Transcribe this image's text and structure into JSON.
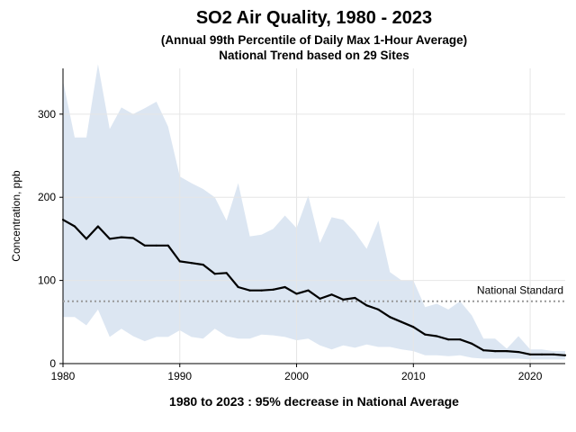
{
  "header": {
    "title": "SO2 Air Quality, 1980 - 2023",
    "subtitle_line1": "(Annual 99th Percentile of Daily Max 1-Hour Average)",
    "subtitle_line2": "National Trend based on 29 Sites"
  },
  "footer": {
    "summary": "1980 to 2023 :  95% decrease in National Average"
  },
  "chart_data": {
    "type": "area",
    "title": "SO2 Air Quality, 1980 - 2023",
    "xlabel": "",
    "ylabel": "Concentration, ppb",
    "xlim": [
      1980,
      2023
    ],
    "ylim": [
      0,
      355
    ],
    "xticks": [
      1980,
      1990,
      2000,
      2010,
      2020
    ],
    "yticks": [
      0,
      100,
      200,
      300
    ],
    "grid": true,
    "colors": {
      "band": "#dce6f2",
      "line": "#000000",
      "standard": "#999999",
      "grid": "#e6e6e6"
    },
    "reference_lines": [
      {
        "label": "National Standard",
        "value": 75
      }
    ],
    "x": [
      1980,
      1981,
      1982,
      1983,
      1984,
      1985,
      1986,
      1987,
      1988,
      1989,
      1990,
      1991,
      1992,
      1993,
      1994,
      1995,
      1996,
      1997,
      1998,
      1999,
      2000,
      2001,
      2002,
      2003,
      2004,
      2005,
      2006,
      2007,
      2008,
      2009,
      2010,
      2011,
      2012,
      2013,
      2014,
      2015,
      2016,
      2017,
      2018,
      2019,
      2020,
      2021,
      2022,
      2023
    ],
    "series": [
      {
        "type": "band",
        "upper": [
          340,
          272,
          272,
          360,
          282,
          308,
          300,
          307,
          315,
          285,
          225,
          217,
          210,
          200,
          172,
          217,
          153,
          155,
          162,
          178,
          163,
          202,
          145,
          176,
          173,
          158,
          138,
          172,
          110,
          100,
          100,
          68,
          72,
          65,
          75,
          58,
          30,
          30,
          18,
          33,
          17,
          17,
          15,
          15
        ],
        "lower": [
          56,
          56,
          46,
          65,
          32,
          42,
          33,
          27,
          32,
          32,
          40,
          32,
          30,
          42,
          33,
          30,
          30,
          35,
          34,
          32,
          28,
          30,
          22,
          17,
          22,
          19,
          23,
          20,
          20,
          17,
          15,
          10,
          10,
          9,
          10,
          7,
          6,
          6,
          6,
          6,
          5,
          5,
          5,
          5
        ]
      },
      {
        "type": "line",
        "values": [
          173,
          165,
          150,
          165,
          150,
          152,
          151,
          142,
          142,
          142,
          123,
          121,
          119,
          108,
          109,
          92,
          88,
          88,
          89,
          92,
          84,
          88,
          78,
          83,
          77,
          79,
          70,
          65,
          56,
          50,
          44,
          35,
          33,
          29,
          29,
          24,
          16,
          15,
          15,
          14,
          11,
          11,
          11,
          10
        ]
      }
    ]
  }
}
